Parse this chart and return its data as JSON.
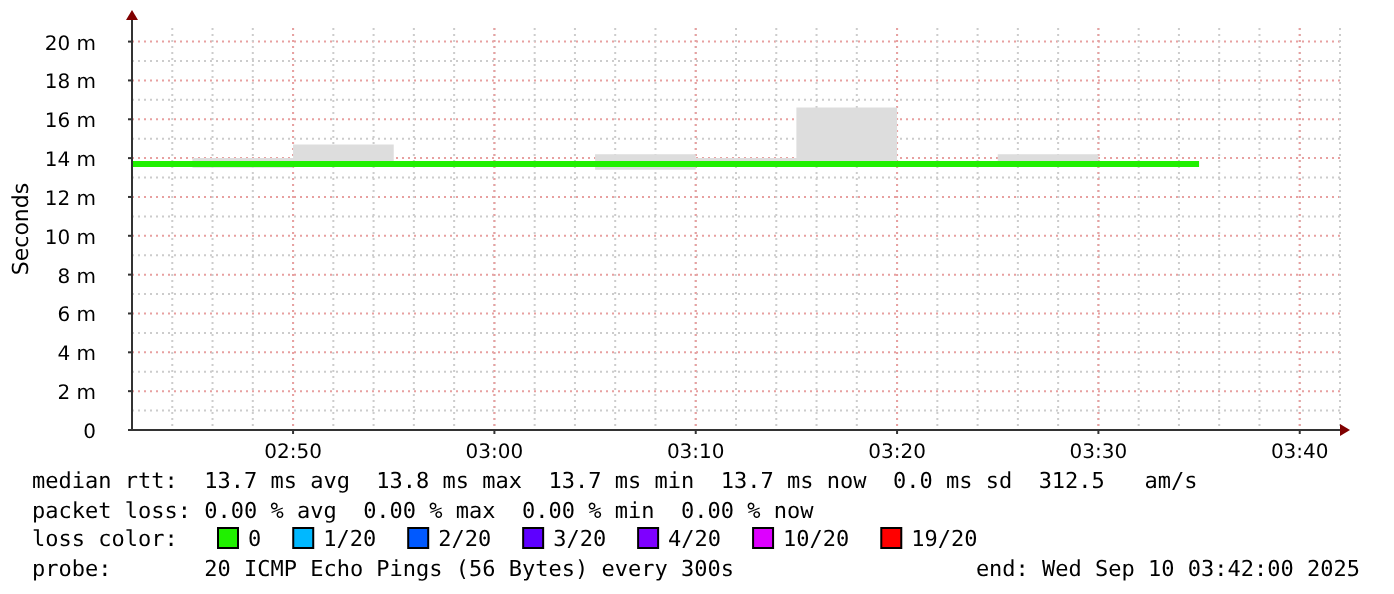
{
  "chart_data": {
    "type": "step",
    "ylabel": "Seconds",
    "legend_title": "loss color:",
    "legend": "bottom",
    "grid": true,
    "x": [
      "2025-09-10T02:42",
      "2025-09-10T02:45",
      "2025-09-10T02:50",
      "2025-09-10T02:55",
      "2025-09-10T03:00",
      "2025-09-10T03:05",
      "2025-09-10T03:10",
      "2025-09-10T03:15",
      "2025-09-10T03:20",
      "2025-09-10T03:25",
      "2025-09-10T03:30",
      "2025-09-10T03:35"
    ],
    "xlim": [
      "2025-09-10T02:42",
      "2025-09-10T03:42"
    ],
    "xticks": [
      {
        "value": "2025-09-10T02:50",
        "label": "02:50"
      },
      {
        "value": "2025-09-10T03:00",
        "label": "03:00"
      },
      {
        "value": "2025-09-10T03:10",
        "label": "03:10"
      },
      {
        "value": "2025-09-10T03:20",
        "label": "03:20"
      },
      {
        "value": "2025-09-10T03:30",
        "label": "03:30"
      },
      {
        "value": "2025-09-10T03:40",
        "label": "03:40"
      }
    ],
    "ylim": [
      0,
      20.7
    ],
    "yticks": [
      0,
      {
        "value": 2,
        "label": "2 m"
      },
      {
        "value": 4,
        "label": "4 m"
      },
      {
        "value": 6,
        "label": "6 m"
      },
      {
        "value": 8,
        "label": "8 m"
      },
      {
        "value": 10,
        "label": "10 m"
      },
      {
        "value": 12,
        "label": "12 m"
      },
      {
        "value": 14,
        "label": "14 m"
      },
      {
        "value": 16,
        "label": "16 m"
      },
      {
        "value": 18,
        "label": "18 m"
      },
      {
        "value": 20,
        "label": "20 m"
      }
    ],
    "series": [
      {
        "name": "0",
        "color": "#20f000",
        "values": [
          13.7,
          13.7,
          13.7,
          13.7,
          13.7,
          13.7,
          13.7,
          13.7,
          13.7,
          13.7,
          13.7,
          13.7
        ],
        "lower": [
          13.7,
          13.5,
          13.6,
          13.7,
          13.7,
          13.4,
          13.6,
          13.6,
          13.7,
          13.6,
          13.7,
          13.7
        ],
        "upper": [
          13.7,
          14.0,
          14.7,
          13.7,
          13.8,
          14.2,
          14.0,
          16.6,
          13.8,
          14.2,
          13.7,
          13.7
        ]
      },
      {
        "name": "1/20",
        "color": "#00b8ff",
        "values": [
          null,
          null,
          null,
          null,
          null,
          null,
          null,
          null,
          null,
          null,
          null,
          null
        ]
      },
      {
        "name": "2/20",
        "color": "#0059ff",
        "values": [
          null,
          null,
          null,
          null,
          null,
          null,
          null,
          null,
          null,
          null,
          null,
          null
        ]
      },
      {
        "name": "3/20",
        "color": "#5e00ff",
        "values": [
          null,
          null,
          null,
          null,
          null,
          null,
          null,
          null,
          null,
          null,
          null,
          null
        ]
      },
      {
        "name": "4/20",
        "color": "#7e00ff",
        "values": [
          null,
          null,
          null,
          null,
          null,
          null,
          null,
          null,
          null,
          null,
          null,
          null
        ]
      },
      {
        "name": "10/20",
        "color": "#dd00ff",
        "values": [
          null,
          null,
          null,
          null,
          null,
          null,
          null,
          null,
          null,
          null,
          null,
          null
        ]
      },
      {
        "name": "19/20",
        "color": "#ff0000",
        "values": [
          null,
          null,
          null,
          null,
          null,
          null,
          null,
          null,
          null,
          null,
          null,
          null
        ]
      }
    ],
    "annotations": [
      "median rtt:  13.7 ms avg  13.8 ms max  13.7 ms min  13.7 ms now  0.0 ms sd  312.5   am/s",
      "packet loss: 0.00 % avg  0.00 % max  0.00 % min  0.00 % now",
      "probe:       20 ICMP Echo Pings (56 Bytes) every 300s",
      "end: Wed Sep 10 03:42:00 2025"
    ]
  }
}
